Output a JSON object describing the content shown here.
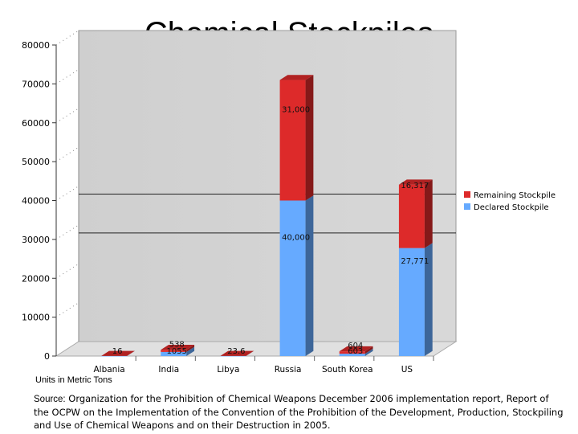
{
  "chart_data": {
    "type": "bar",
    "title": "Chemical Stockpiles",
    "categories": [
      "Albania",
      "India",
      "Libya",
      "Russia",
      "South Korea",
      "US"
    ],
    "series": [
      {
        "name": "Declared Stockpile",
        "values": [
          16,
          1055,
          23.6,
          40000,
          603,
          27771
        ],
        "color": "#66aaff"
      },
      {
        "name": "Remaining Stockpile",
        "values": [
          0,
          538,
          0,
          31000,
          604,
          16317
        ],
        "color": "#dd2a2a"
      }
    ],
    "data_labels": [
      [
        "16",
        "1055",
        "23.6",
        "40,000",
        "603",
        "27,771"
      ],
      [
        "",
        "538",
        "",
        "31,000",
        "604",
        "16,317"
      ]
    ],
    "yticks": [
      0,
      10000,
      20000,
      30000,
      40000,
      50000,
      60000,
      70000,
      80000
    ],
    "ylim": [
      0,
      80000
    ],
    "stacked": true,
    "legend_position": "right",
    "units_note": "Units in Metric Tons"
  },
  "source": {
    "label": "Source:",
    "text": "Organization for the Prohibition of Chemical Weapons December 2006 implementation report, Report of the OCPW on the Implementation of the Convention of the Prohibition of the Development, Production, Stockpiling and Use of Chemical Weapons and on their Destruction in 2005."
  }
}
